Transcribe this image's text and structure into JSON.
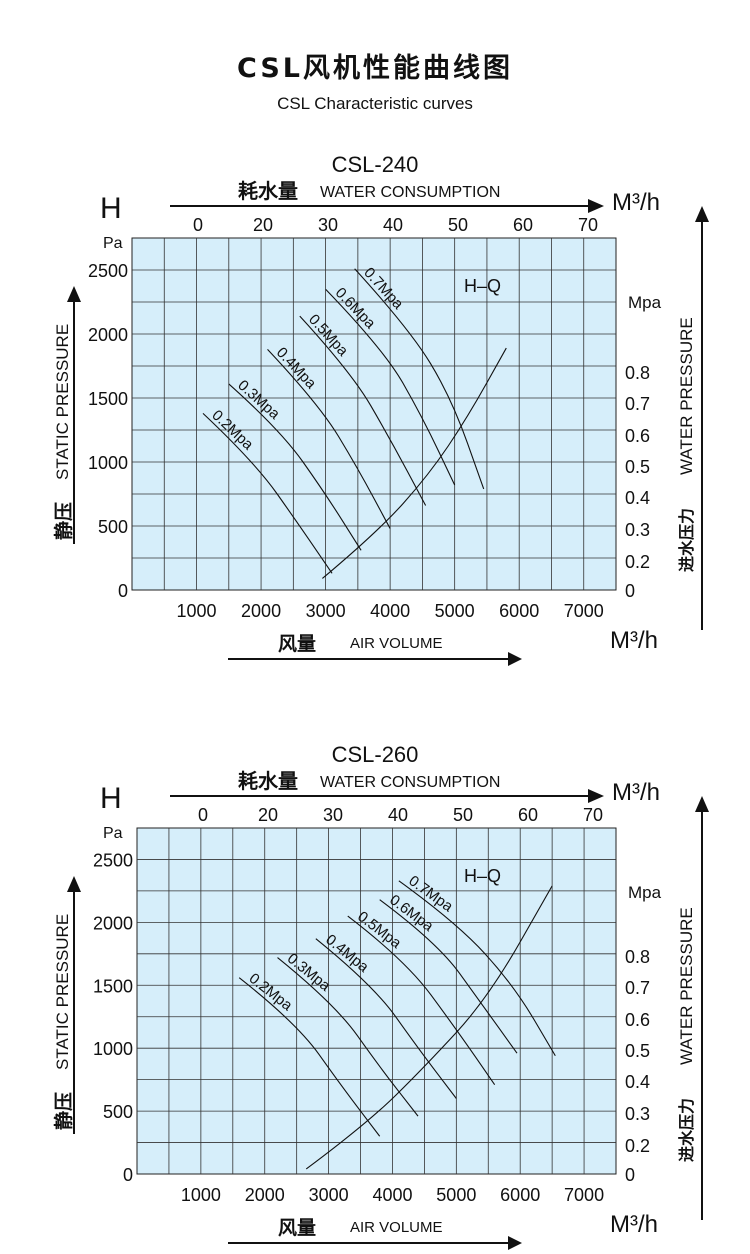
{
  "page": {
    "title": "CSL风机性能曲线图",
    "subtitle": "CSL Characteristic curves"
  },
  "chart_data": [
    {
      "type": "line",
      "title": "CSL-240",
      "h_label": "H",
      "pa_unit": "Pa",
      "left_axis_label_en": "STATIC PRESSURE",
      "left_axis_label_cn": "静压",
      "right_axis_label_en": "WATER PRESSURE",
      "right_axis_label_cn": "进水压力",
      "right_unit": "Mpa",
      "top_axis_label_cn": "耗水量",
      "top_axis_label_en": "WATER CONSUMPTION",
      "top_unit": "M³/h",
      "bottom_axis_label_cn": "风量",
      "bottom_axis_label_en": "AIR VOLUME",
      "bottom_unit": "M³/h",
      "hq_label": "H–Q",
      "x_ticks": [
        "1000",
        "2000",
        "3000",
        "4000",
        "5000",
        "6000",
        "7000"
      ],
      "y_ticks": [
        "0",
        "500",
        "1000",
        "1500",
        "2000",
        "2500"
      ],
      "top_ticks": [
        "0",
        "20",
        "30",
        "40",
        "50",
        "60",
        "70"
      ],
      "right_ticks": [
        "0",
        "0.2",
        "0.3",
        "0.4",
        "0.5",
        "0.6",
        "0.7",
        "0.8"
      ],
      "xlim": [
        0,
        7500
      ],
      "ylim": [
        0,
        2750
      ],
      "grid": true,
      "series": [
        {
          "name": "0.2Mpa",
          "x": [
            1100,
            1900,
            2600,
            3100
          ],
          "y": [
            1380,
            1000,
            500,
            130
          ]
        },
        {
          "name": "0.3Mpa",
          "x": [
            1500,
            2300,
            3000,
            3550
          ],
          "y": [
            1610,
            1250,
            750,
            310
          ]
        },
        {
          "name": "0.4Mpa",
          "x": [
            2100,
            2900,
            3500,
            4000
          ],
          "y": [
            1880,
            1450,
            950,
            480
          ]
        },
        {
          "name": "0.5Mpa",
          "x": [
            2600,
            3400,
            4000,
            4550
          ],
          "y": [
            2140,
            1700,
            1180,
            660
          ]
        },
        {
          "name": "0.6Mpa",
          "x": [
            3000,
            3900,
            4500,
            5000
          ],
          "y": [
            2350,
            1880,
            1350,
            820
          ]
        },
        {
          "name": "0.7Mpa",
          "x": [
            3450,
            4300,
            4950,
            5450
          ],
          "y": [
            2510,
            2040,
            1500,
            790
          ]
        },
        {
          "name": "H–Q",
          "x": [
            2950,
            3800,
            4600,
            5200,
            5800
          ],
          "y": [
            90,
            450,
            900,
            1350,
            1890
          ]
        }
      ]
    },
    {
      "type": "line",
      "title": "CSL-260",
      "h_label": "H",
      "pa_unit": "Pa",
      "left_axis_label_en": "STATIC PRESSURE",
      "left_axis_label_cn": "静压",
      "right_axis_label_en": "WATER PRESSURE",
      "right_axis_label_cn": "进水压力",
      "right_unit": "Mpa",
      "top_axis_label_cn": "耗水量",
      "top_axis_label_en": "WATER CONSUMPTION",
      "top_unit": "M³/h",
      "bottom_axis_label_cn": "风量",
      "bottom_axis_label_en": "AIR VOLUME",
      "bottom_unit": "M³/h",
      "hq_label": "H–Q",
      "x_ticks": [
        "1000",
        "2000",
        "3000",
        "4000",
        "5000",
        "6000",
        "7000"
      ],
      "y_ticks": [
        "0",
        "500",
        "1000",
        "1500",
        "2000",
        "2500"
      ],
      "top_ticks": [
        "0",
        "20",
        "30",
        "40",
        "50",
        "60",
        "70"
      ],
      "right_ticks": [
        "0",
        "0.2",
        "0.3",
        "0.4",
        "0.5",
        "0.6",
        "0.7",
        "0.8"
      ],
      "xlim": [
        0,
        7500
      ],
      "ylim": [
        0,
        2750
      ],
      "grid": true,
      "series": [
        {
          "name": "0.2Mpa",
          "x": [
            1600,
            2500,
            3200,
            3800
          ],
          "y": [
            1560,
            1200,
            700,
            300
          ]
        },
        {
          "name": "0.3Mpa",
          "x": [
            2200,
            3100,
            3800,
            4400
          ],
          "y": [
            1720,
            1350,
            850,
            460
          ]
        },
        {
          "name": "0.4Mpa",
          "x": [
            2800,
            3700,
            4400,
            5000
          ],
          "y": [
            1870,
            1500,
            1000,
            600
          ]
        },
        {
          "name": "0.5Mpa",
          "x": [
            3300,
            4200,
            5000,
            5600
          ],
          "y": [
            2050,
            1700,
            1150,
            710
          ]
        },
        {
          "name": "0.6Mpa",
          "x": [
            3800,
            4700,
            5400,
            5950
          ],
          "y": [
            2180,
            1840,
            1350,
            960
          ]
        },
        {
          "name": "0.7Mpa",
          "x": [
            4100,
            5000,
            5900,
            6550
          ],
          "y": [
            2330,
            2000,
            1500,
            940
          ]
        },
        {
          "name": "H–Q",
          "x": [
            2650,
            3600,
            4500,
            5500,
            6500
          ],
          "y": [
            40,
            400,
            850,
            1400,
            2290
          ]
        }
      ]
    }
  ]
}
